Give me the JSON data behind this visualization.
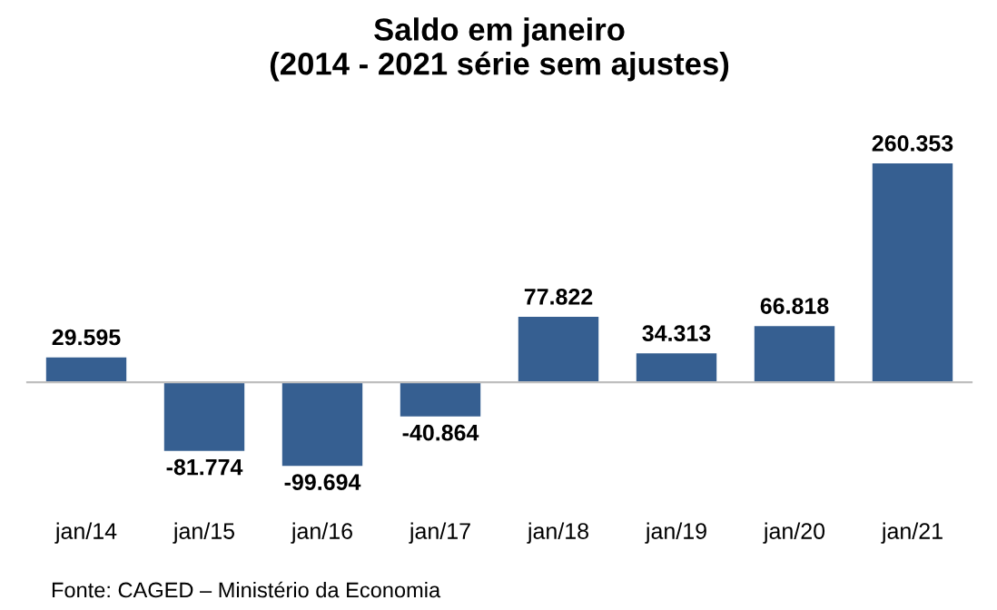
{
  "chart_data": {
    "type": "bar",
    "title": "Saldo em janeiro\n(2014 - 2021 série sem ajustes)",
    "categories": [
      "jan/14",
      "jan/15",
      "jan/16",
      "jan/17",
      "jan/18",
      "jan/19",
      "jan/20",
      "jan/21"
    ],
    "values": [
      29595,
      -81774,
      -99694,
      -40864,
      77822,
      34313,
      66818,
      260353
    ],
    "value_labels": [
      "29.595",
      "-81.774",
      "-99.694",
      "-40.864",
      "77.822",
      "34.313",
      "66.818",
      "260.353"
    ],
    "color": "#365f91",
    "annotations": [
      "Fonte: CAGED – Ministério da Economia"
    ],
    "grid": false,
    "legend": false
  }
}
